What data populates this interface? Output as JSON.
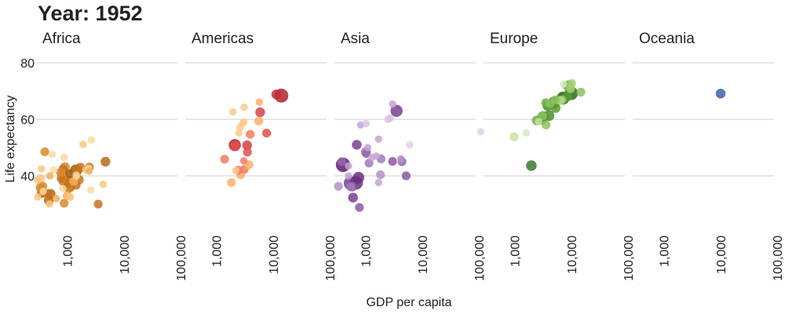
{
  "title": "Year: 1952",
  "chart_data": {
    "type": "scatter",
    "title": "Year: 1952",
    "xlabel": "GDP per capita",
    "ylabel": "Life expectancy",
    "x_scale": "log",
    "xlim": [
      300,
      100000
    ],
    "ylim": [
      26,
      84
    ],
    "x_ticks": [
      1000,
      10000,
      100000
    ],
    "x_tick_labels": [
      "1,000",
      "10,000",
      "100,000"
    ],
    "y_ticks": [
      40,
      60,
      80
    ],
    "y_tick_labels": [
      "40",
      "60",
      "80"
    ],
    "grid": "horizontal",
    "facets": [
      {
        "name": "Africa",
        "points": [
          {
            "x": 2450,
            "y": 43.1,
            "size": 2,
            "color": "#c5741c"
          },
          {
            "x": 3520,
            "y": 30.0,
            "size": 2,
            "color": "#c5741c"
          },
          {
            "x": 850,
            "y": 38.2,
            "size": 3,
            "color": "#c5741c"
          },
          {
            "x": 540,
            "y": 47.6,
            "size": 1,
            "color": "#fdd9a0"
          },
          {
            "x": 640,
            "y": 32.0,
            "size": 1,
            "color": "#f3ad5f"
          },
          {
            "x": 340,
            "y": 39.0,
            "size": 2,
            "color": "#fbc57f"
          },
          {
            "x": 1170,
            "y": 38.5,
            "size": 3,
            "color": "#b86a14"
          },
          {
            "x": 1070,
            "y": 35.5,
            "size": 2,
            "color": "#d8892c"
          },
          {
            "x": 1180,
            "y": 38.1,
            "size": 2,
            "color": "#d8892c"
          },
          {
            "x": 1100,
            "y": 40.7,
            "size": 2,
            "color": "#a05c0e"
          },
          {
            "x": 780,
            "y": 39.1,
            "size": 2,
            "color": "#c5741c"
          },
          {
            "x": 2130,
            "y": 42.1,
            "size": 1,
            "color": "#fbc57f"
          },
          {
            "x": 1390,
            "y": 40.5,
            "size": 2,
            "color": "#c5741c"
          },
          {
            "x": 1420,
            "y": 41.9,
            "size": 6,
            "color": "#a05c0e"
          },
          {
            "x": 375,
            "y": 34.5,
            "size": 1,
            "color": "#fdd9a0"
          },
          {
            "x": 330,
            "y": 35.9,
            "size": 2,
            "color": "#d8892c"
          },
          {
            "x": 360,
            "y": 34.1,
            "size": 4,
            "color": "#b86a14"
          },
          {
            "x": 4290,
            "y": 37.0,
            "size": 1,
            "color": "#fbc57f"
          },
          {
            "x": 485,
            "y": 30.0,
            "size": 1,
            "color": "#fbc57f"
          },
          {
            "x": 911,
            "y": 43.1,
            "size": 3,
            "color": "#d8892c"
          },
          {
            "x": 510,
            "y": 33.6,
            "size": 3,
            "color": "#b86a14"
          },
          {
            "x": 300,
            "y": 32.5,
            "size": 1,
            "color": "#fbc57f"
          },
          {
            "x": 853,
            "y": 42.3,
            "size": 3,
            "color": "#c5741c"
          },
          {
            "x": 298,
            "y": 38.5,
            "size": 1,
            "color": "#fbc57f"
          },
          {
            "x": 575,
            "y": 42.1,
            "size": 1,
            "color": "#fdd9a0"
          },
          {
            "x": 2390,
            "y": 42.7,
            "size": 1,
            "color": "#fdd9a0"
          },
          {
            "x": 1440,
            "y": 36.7,
            "size": 2,
            "color": "#c5741c"
          },
          {
            "x": 370,
            "y": 36.3,
            "size": 2,
            "color": "#d8892c"
          },
          {
            "x": 450,
            "y": 33.7,
            "size": 2,
            "color": "#c5741c"
          },
          {
            "x": 1440,
            "y": 40.4,
            "size": 1,
            "color": "#f3ad5f"
          },
          {
            "x": 1700,
            "y": 42.9,
            "size": 3,
            "color": "#c5741c"
          },
          {
            "x": 470,
            "y": 31.3,
            "size": 3,
            "color": "#b86a14"
          },
          {
            "x": 2420,
            "y": 41.7,
            "size": 1,
            "color": "#f3ad5f"
          },
          {
            "x": 760,
            "y": 41.2,
            "size": 2,
            "color": "#d8892c"
          },
          {
            "x": 1060,
            "y": 37.4,
            "size": 2,
            "color": "#c5741c"
          },
          {
            "x": 1080,
            "y": 36.3,
            "size": 6,
            "color": "#8d4f0a"
          },
          {
            "x": 490,
            "y": 40.0,
            "size": 1,
            "color": "#f3ad5f"
          },
          {
            "x": 880,
            "y": 46.5,
            "size": 1,
            "color": "#fdd9a0"
          },
          {
            "x": 1450,
            "y": 40.0,
            "size": 1,
            "color": "#fdd9a0"
          },
          {
            "x": 880,
            "y": 30.3,
            "size": 2,
            "color": "#d8892c"
          },
          {
            "x": 1135,
            "y": 32.5,
            "size": 1,
            "color": "#fbc57f"
          },
          {
            "x": 4725,
            "y": 45.0,
            "size": 3,
            "color": "#b86a14"
          },
          {
            "x": 1600,
            "y": 38.6,
            "size": 3,
            "color": "#c5741c"
          },
          {
            "x": 1900,
            "y": 51.1,
            "size": 1,
            "color": "#fbc57f"
          },
          {
            "x": 2665,
            "y": 52.7,
            "size": 1,
            "color": "#fdd9a0"
          },
          {
            "x": 830,
            "y": 35.5,
            "size": 1,
            "color": "#fdd9a0"
          },
          {
            "x": 1300,
            "y": 38.0,
            "size": 2,
            "color": "#f3ad5f"
          },
          {
            "x": 400,
            "y": 48.5,
            "size": 2,
            "color": "#d8892c"
          },
          {
            "x": 2600,
            "y": 35.0,
            "size": 1,
            "color": "#fdd9a0"
          },
          {
            "x": 820,
            "y": 40.5,
            "size": 3,
            "color": "#d8892c"
          },
          {
            "x": 1000,
            "y": 33.0,
            "size": 2,
            "color": "#f3ad5f"
          },
          {
            "x": 350,
            "y": 42.5,
            "size": 1,
            "color": "#fbc57f"
          }
        ]
      },
      {
        "name": "Americas",
        "points": [
          {
            "x": 5911,
            "y": 62.5,
            "size": 3,
            "color": "#d6404e"
          },
          {
            "x": 2677,
            "y": 40.4,
            "size": 2,
            "color": "#f3ad5f"
          },
          {
            "x": 2109,
            "y": 50.9,
            "size": 6,
            "color": "#b3202e"
          },
          {
            "x": 11367,
            "y": 68.8,
            "size": 3,
            "color": "#c42d3b"
          },
          {
            "x": 3940,
            "y": 54.7,
            "size": 2,
            "color": "#f47a5e"
          },
          {
            "x": 2144,
            "y": 50.6,
            "size": 3,
            "color": "#e3504a"
          },
          {
            "x": 2627,
            "y": 57.2,
            "size": 1,
            "color": "#fdc98a"
          },
          {
            "x": 5587,
            "y": 59.4,
            "size": 2,
            "color": "#fbb06b"
          },
          {
            "x": 1398,
            "y": 45.9,
            "size": 2,
            "color": "#f47a5e"
          },
          {
            "x": 3522,
            "y": 48.4,
            "size": 2,
            "color": "#e3504a"
          },
          {
            "x": 3048,
            "y": 45.3,
            "size": 1,
            "color": "#f47a5e"
          },
          {
            "x": 2428,
            "y": 42.0,
            "size": 2,
            "color": "#f47a5e"
          },
          {
            "x": 1840,
            "y": 37.6,
            "size": 2,
            "color": "#fbb06b"
          },
          {
            "x": 2194,
            "y": 41.9,
            "size": 1,
            "color": "#fdc98a"
          },
          {
            "x": 2898,
            "y": 58.5,
            "size": 1,
            "color": "#fdc98a"
          },
          {
            "x": 3478,
            "y": 50.8,
            "size": 3,
            "color": "#d6404e"
          },
          {
            "x": 3112,
            "y": 42.3,
            "size": 2,
            "color": "#f47a5e"
          },
          {
            "x": 2481,
            "y": 55.2,
            "size": 1,
            "color": "#fdc98a"
          },
          {
            "x": 1953,
            "y": 62.6,
            "size": 1,
            "color": "#fdc98a"
          },
          {
            "x": 3759,
            "y": 43.9,
            "size": 2,
            "color": "#fbb06b"
          },
          {
            "x": 3082,
            "y": 64.3,
            "size": 1,
            "color": "#fdc98a"
          },
          {
            "x": 3024,
            "y": 59.1,
            "size": 1,
            "color": "#fdc98a"
          },
          {
            "x": 13990,
            "y": 68.4,
            "size": 9,
            "color": "#b3202e"
          },
          {
            "x": 5717,
            "y": 66.1,
            "size": 1,
            "color": "#fbb06b"
          },
          {
            "x": 7690,
            "y": 55.1,
            "size": 2,
            "color": "#e3504a"
          }
        ]
      },
      {
        "name": "Asia",
        "points": [
          {
            "x": 779,
            "y": 28.8,
            "size": 2,
            "color": "#8c5ba6"
          },
          {
            "x": 684,
            "y": 37.5,
            "size": 8,
            "color": "#6a2f7f"
          },
          {
            "x": 400,
            "y": 43.9,
            "size": 10,
            "color": "#5a1f70"
          },
          {
            "x": 546,
            "y": 37.4,
            "size": 9,
            "color": "#7b3e92"
          },
          {
            "x": 750,
            "y": 39.4,
            "size": 5,
            "color": "#6a2f7f"
          },
          {
            "x": 1013,
            "y": 48.5,
            "size": 3,
            "color": "#a07ab5"
          },
          {
            "x": 1030,
            "y": 47.9,
            "size": 2,
            "color": "#9467ab"
          },
          {
            "x": 3530,
            "y": 63.0,
            "size": 6,
            "color": "#7b3e92"
          },
          {
            "x": 1089,
            "y": 50.0,
            "size": 1,
            "color": "#c4a4d4"
          },
          {
            "x": 1546,
            "y": 47.0,
            "size": 1,
            "color": "#c4a4d4"
          },
          {
            "x": 2500,
            "y": 60.0,
            "size": 1,
            "color": "#d9c2e3"
          },
          {
            "x": 1873,
            "y": 46.0,
            "size": 2,
            "color": "#a07ab5"
          },
          {
            "x": 4400,
            "y": 45.0,
            "size": 2,
            "color": "#9467ab"
          },
          {
            "x": 331,
            "y": 36.3,
            "size": 2,
            "color": "#b491c8"
          },
          {
            "x": 575,
            "y": 36.2,
            "size": 3,
            "color": "#8c5ba6"
          },
          {
            "x": 545,
            "y": 36.1,
            "size": 2,
            "color": "#a07ab5"
          },
          {
            "x": 600,
            "y": 32.3,
            "size": 3,
            "color": "#7b3e92"
          },
          {
            "x": 1830,
            "y": 40.4,
            "size": 2,
            "color": "#b491c8"
          },
          {
            "x": 1700,
            "y": 37.6,
            "size": 1,
            "color": "#c4a4d4"
          },
          {
            "x": 2720,
            "y": 60.4,
            "size": 1,
            "color": "#d9c2e3"
          },
          {
            "x": 3000,
            "y": 65.4,
            "size": 1,
            "color": "#c4a4d4"
          },
          {
            "x": 6000,
            "y": 51.0,
            "size": 1,
            "color": "#e0d0ea"
          },
          {
            "x": 1300,
            "y": 46.5,
            "size": 1,
            "color": "#c4a4d4"
          },
          {
            "x": 1700,
            "y": 53.0,
            "size": 1,
            "color": "#c4a4d4"
          },
          {
            "x": 3000,
            "y": 45.1,
            "size": 2,
            "color": "#8c5ba6"
          },
          {
            "x": 4200,
            "y": 46.0,
            "size": 1,
            "color": "#b491c8"
          },
          {
            "x": 700,
            "y": 51.0,
            "size": 3,
            "color": "#7b3e92"
          },
          {
            "x": 500,
            "y": 43.5,
            "size": 1,
            "color": "#c4a4d4"
          },
          {
            "x": 380,
            "y": 45.0,
            "size": 2,
            "color": "#9467ab"
          },
          {
            "x": 500,
            "y": 40.0,
            "size": 1,
            "color": "#c4a4d4"
          },
          {
            "x": 820,
            "y": 58.0,
            "size": 1,
            "color": "#c4a4d4"
          },
          {
            "x": 1020,
            "y": 58.5,
            "size": 1,
            "color": "#d9c2e3"
          },
          {
            "x": 1150,
            "y": 44.5,
            "size": 2,
            "color": "#a07ab5"
          },
          {
            "x": 5200,
            "y": 40.0,
            "size": 2,
            "color": "#8c5ba6"
          },
          {
            "x": 108000,
            "y": 55.6,
            "size": 1,
            "color": "#e0d0ea"
          }
        ]
      },
      {
        "name": "Europe",
        "points": [
          {
            "x": 1601,
            "y": 55.2,
            "size": 1,
            "color": "#d3eab8"
          },
          {
            "x": 6137,
            "y": 66.8,
            "size": 3,
            "color": "#5a9e34"
          },
          {
            "x": 8343,
            "y": 68.0,
            "size": 3,
            "color": "#5a9e34"
          },
          {
            "x": 973,
            "y": 53.8,
            "size": 2,
            "color": "#c7e29e"
          },
          {
            "x": 2444,
            "y": 59.6,
            "size": 3,
            "color": "#6faf45"
          },
          {
            "x": 3119,
            "y": 61.2,
            "size": 2,
            "color": "#8cc35c"
          },
          {
            "x": 6876,
            "y": 66.9,
            "size": 2,
            "color": "#8cc35c"
          },
          {
            "x": 9692,
            "y": 70.8,
            "size": 2,
            "color": "#a6d075"
          },
          {
            "x": 6424,
            "y": 66.6,
            "size": 2,
            "color": "#b5d98a"
          },
          {
            "x": 7030,
            "y": 67.4,
            "size": 6,
            "color": "#2d7a1e"
          },
          {
            "x": 7144,
            "y": 67.5,
            "size": 7,
            "color": "#276b1a"
          },
          {
            "x": 3531,
            "y": 65.9,
            "size": 2,
            "color": "#6faf45"
          },
          {
            "x": 5264,
            "y": 64.0,
            "size": 3,
            "color": "#5a9e34"
          },
          {
            "x": 7268,
            "y": 72.5,
            "size": 1,
            "color": "#d3eab8"
          },
          {
            "x": 5210,
            "y": 66.9,
            "size": 2,
            "color": "#8cc35c"
          },
          {
            "x": 4931,
            "y": 65.9,
            "size": 6,
            "color": "#2d7a1e"
          },
          {
            "x": 2648,
            "y": 59.2,
            "size": 1,
            "color": "#c7e29e"
          },
          {
            "x": 8942,
            "y": 72.1,
            "size": 3,
            "color": "#6faf45"
          },
          {
            "x": 10095,
            "y": 72.7,
            "size": 2,
            "color": "#a6d075"
          },
          {
            "x": 4029,
            "y": 61.3,
            "size": 4,
            "color": "#4a8e2c"
          },
          {
            "x": 3068,
            "y": 59.8,
            "size": 3,
            "color": "#5a9e34"
          },
          {
            "x": 3144,
            "y": 61.0,
            "size": 4,
            "color": "#4a8e2c"
          },
          {
            "x": 3581,
            "y": 58.0,
            "size": 2,
            "color": "#8cc35c"
          },
          {
            "x": 4215,
            "y": 65.6,
            "size": 2,
            "color": "#8cc35c"
          },
          {
            "x": 3834,
            "y": 64.9,
            "size": 4,
            "color": "#4a8e2c"
          },
          {
            "x": 8528,
            "y": 71.9,
            "size": 3,
            "color": "#6faf45"
          },
          {
            "x": 14734,
            "y": 69.6,
            "size": 2,
            "color": "#8cc35c"
          },
          {
            "x": 1969,
            "y": 43.6,
            "size": 4,
            "color": "#3d7a30"
          },
          {
            "x": 9980,
            "y": 69.2,
            "size": 8,
            "color": "#276b1a"
          }
        ]
      },
      {
        "name": "Oceania",
        "points": [
          {
            "x": 10040,
            "y": 69.1,
            "size": 3,
            "color": "#3a5ea8"
          },
          {
            "x": 10557,
            "y": 69.4,
            "size": 1,
            "color": "#5b7cc0"
          }
        ]
      }
    ]
  }
}
